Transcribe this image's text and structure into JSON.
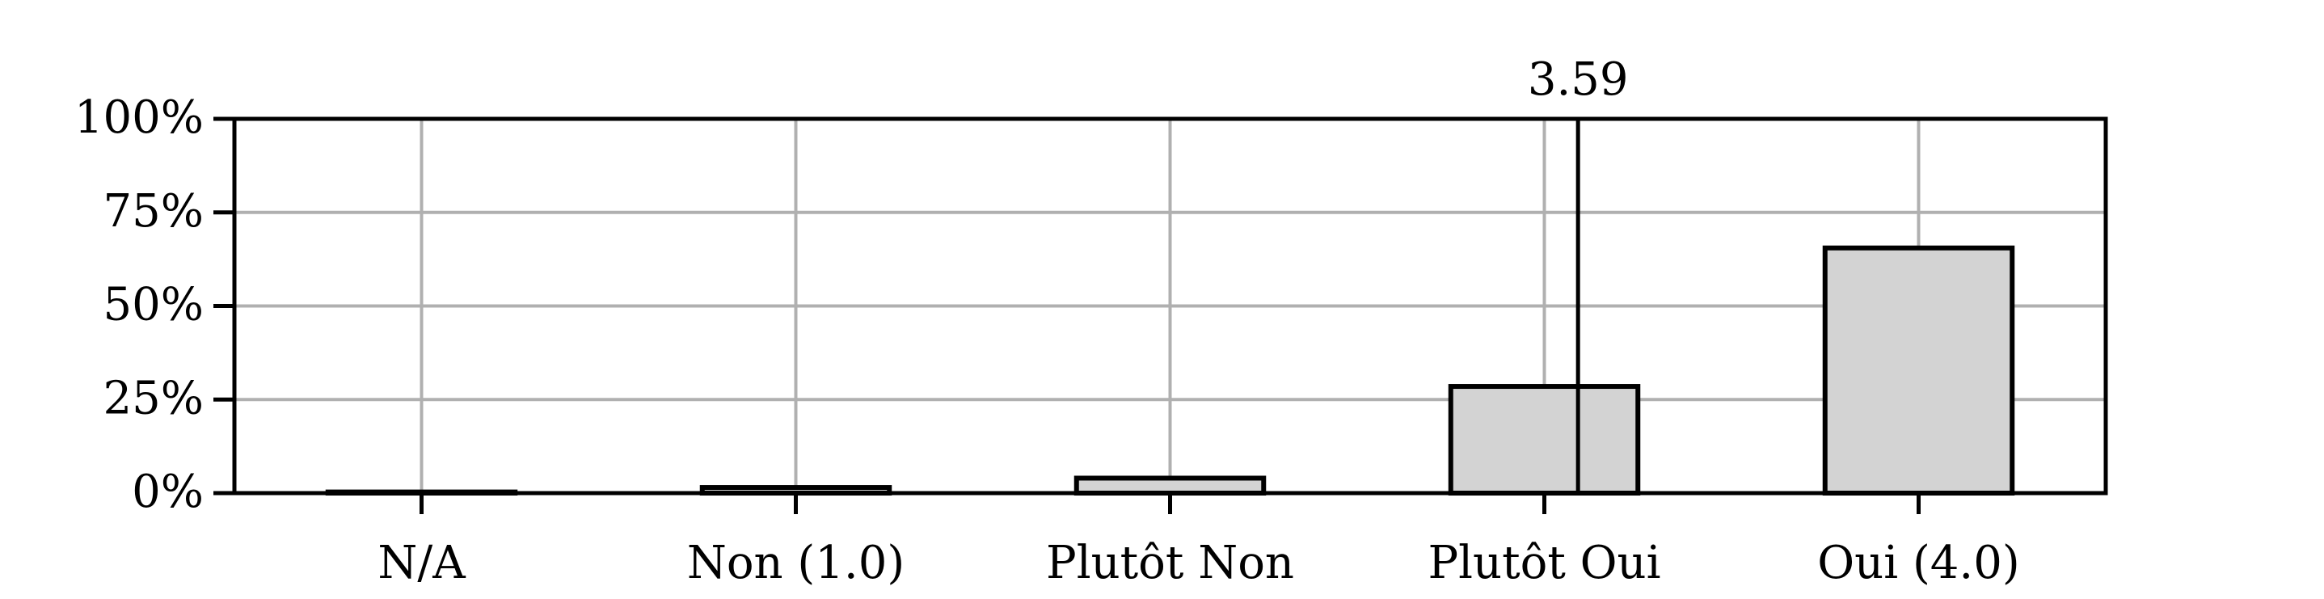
{
  "chart_data": {
    "type": "bar",
    "categories": [
      "N/A",
      "Non (1.0)",
      "Plutôt Non",
      "Plutôt Oui",
      "Oui (4.0)"
    ],
    "values": [
      0.3,
      1.5,
      4.0,
      28.5,
      65.5
    ],
    "ylim": [
      0,
      100
    ],
    "yticks": [
      0,
      25,
      50,
      75,
      100
    ],
    "ytick_labels": [
      "0%",
      "25%",
      "50%",
      "75%",
      "100%"
    ],
    "grid": true,
    "title": "",
    "xlabel": "",
    "ylabel": "",
    "mean": {
      "value": 3.59,
      "label": "3.59",
      "scale_min": 1.0,
      "scale_max": 4.0
    },
    "colors": {
      "bar_fill": "#d3d3d3",
      "bar_edge": "#000000",
      "grid": "#b0b0b0",
      "axis": "#000000"
    }
  }
}
